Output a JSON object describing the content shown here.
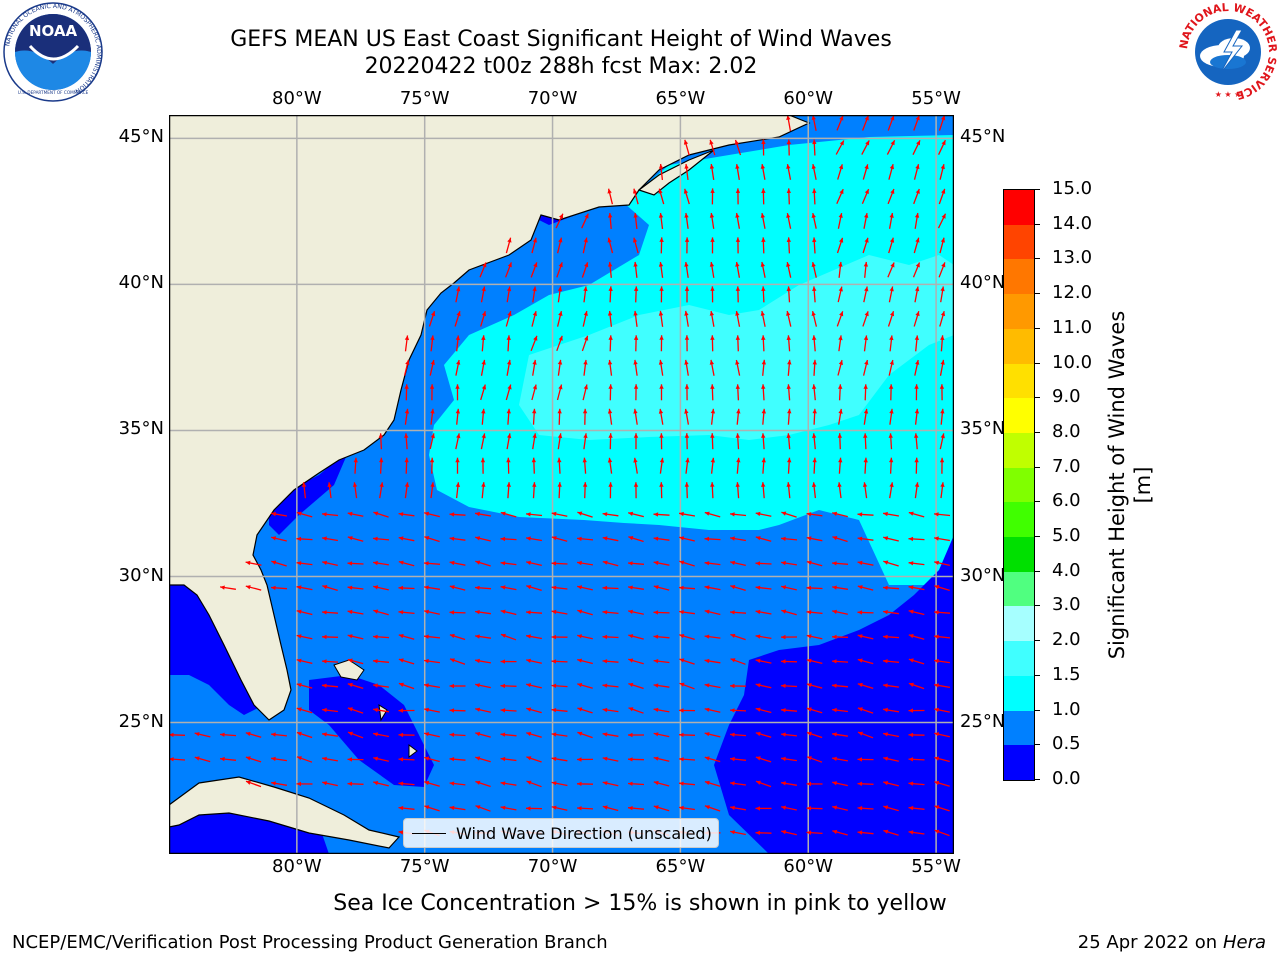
{
  "title": {
    "line1": "GEFS MEAN US East Coast Significant Height of Wind Waves",
    "line2": "20220422 t00z 288h fcst   Max: 2.02"
  },
  "map": {
    "lon_labels": [
      "80°W",
      "75°W",
      "70°W",
      "65°W",
      "60°W",
      "55°W"
    ],
    "lat_labels": [
      "45°N",
      "40°N",
      "35°N",
      "30°N",
      "25°N"
    ],
    "lon_range": [
      -85,
      -54.3
    ],
    "lat_range": [
      20.5,
      45.8
    ],
    "legend_label": "Wind Wave Direction (unscaled)",
    "arrow_color": "#ff0000",
    "land_color": "#efeedb",
    "grid": true
  },
  "colorbar": {
    "label": "Significant Height of Wind Waves [m]",
    "ticks": [
      "0.0",
      "0.5",
      "1.0",
      "1.5",
      "2.0",
      "3.0",
      "4.0",
      "5.0",
      "6.0",
      "7.0",
      "8.0",
      "9.0",
      "10.0",
      "11.0",
      "12.0",
      "13.0",
      "14.0",
      "15.0"
    ],
    "colors": [
      "#0000ff",
      "#0080ff",
      "#00ffff",
      "#40ffff",
      "#a6ffff",
      "#50ff80",
      "#00e000",
      "#40ff00",
      "#80ff00",
      "#c0ff00",
      "#ffff00",
      "#ffe000",
      "#ffbb00",
      "#ff9900",
      "#ff7700",
      "#ff4400",
      "#ff0000"
    ]
  },
  "caption": "Sea Ice Concentration > 15% is shown in pink to yellow",
  "footer": {
    "left": "NCEP/EMC/Verification Post Processing Product Generation Branch",
    "date": "25 Apr 2022 on ",
    "machine": "Hera"
  },
  "logos": {
    "noaa": "NOAA",
    "noaa_ring_top": "NATIONAL OCEANIC AND ATMOSPHERIC ADMINISTRATION",
    "noaa_ring_bottom": "U.S. DEPARTMENT OF COMMERCE",
    "nws": "NATIONAL WEATHER SERVICE"
  }
}
